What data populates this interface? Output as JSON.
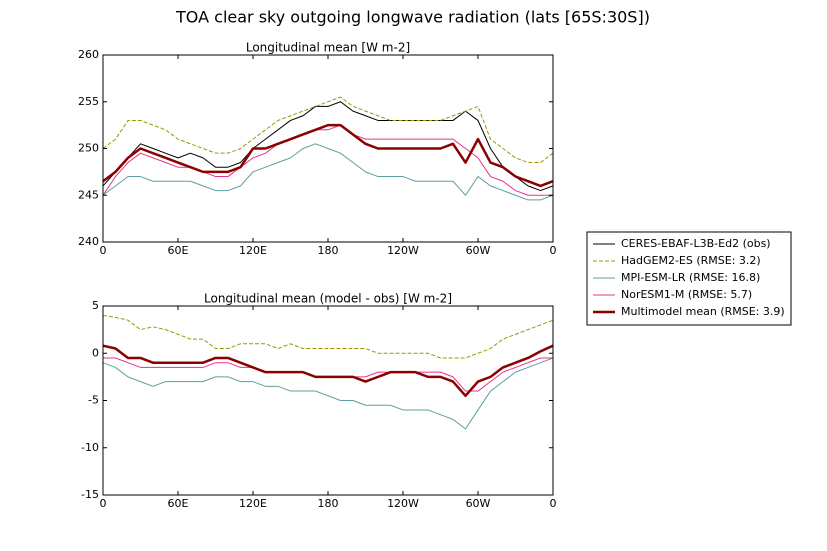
{
  "title": "TOA clear sky outgoing longwave radiation (lats [65S:30S])",
  "chart_data": [
    {
      "type": "line",
      "title": "Longitudinal mean [W m-2]",
      "x": [
        0,
        10,
        20,
        30,
        40,
        50,
        60,
        70,
        80,
        90,
        100,
        110,
        120,
        130,
        140,
        150,
        160,
        170,
        180,
        190,
        200,
        210,
        220,
        230,
        240,
        250,
        260,
        270,
        280,
        290,
        300,
        310,
        320,
        330,
        340,
        350,
        360
      ],
      "xlim": [
        0,
        360
      ],
      "xticks": [
        0,
        {
          "value": 60,
          "label": "60E"
        },
        {
          "value": 120,
          "label": "120E"
        },
        180,
        {
          "value": 240,
          "label": "120W"
        },
        {
          "value": 300,
          "label": "60W"
        },
        {
          "value": 360,
          "label": "0"
        }
      ],
      "ylim": [
        240,
        260
      ],
      "yticks": [
        240,
        245,
        250,
        255,
        260
      ],
      "legend": "outside-right",
      "series": [
        {
          "name": "CERES-EBAF-L3B-Ed2 (obs)",
          "color": "#000000",
          "linewidth": 1,
          "values": [
            246,
            247.5,
            249,
            250.5,
            250,
            249.5,
            249,
            249.5,
            249,
            248,
            248,
            248.5,
            250,
            251,
            252,
            253,
            253.5,
            254.5,
            254.5,
            255,
            254,
            253.5,
            253,
            253,
            253,
            253,
            253,
            253,
            253,
            254,
            253,
            250,
            248,
            247,
            246,
            245.5,
            246
          ]
        },
        {
          "name": "HadGEM2-ES (RMSE: 3.2)",
          "color": "#999900",
          "linestyle": "dashed",
          "linewidth": 1,
          "values": [
            250,
            251,
            253,
            253,
            252.5,
            252,
            251,
            250.5,
            250,
            249.5,
            249.5,
            250,
            251,
            252,
            253,
            253.5,
            254,
            254.5,
            255,
            255.5,
            254.5,
            254,
            253.5,
            253,
            253,
            253,
            253,
            253,
            253.5,
            254,
            254.5,
            251,
            250,
            249,
            248.5,
            248.5,
            249.5
          ]
        },
        {
          "name": "MPI-ESM-LR (RMSE: 16.8)",
          "color": "#5f9ea0",
          "linewidth": 1,
          "values": [
            245,
            246,
            247,
            247,
            246.5,
            246.5,
            246.5,
            246.5,
            246,
            245.5,
            245.5,
            246,
            247.5,
            248,
            248.5,
            249,
            250,
            250.5,
            250,
            249.5,
            248.5,
            247.5,
            247,
            247,
            247,
            246.5,
            246.5,
            246.5,
            246.5,
            245,
            247,
            246,
            245.5,
            245,
            244.5,
            244.5,
            245
          ]
        },
        {
          "name": "NorESM1-M (RMSE: 5.7)",
          "color": "#e8338b",
          "linewidth": 1,
          "values": [
            245,
            247,
            248.5,
            249.5,
            249,
            248.5,
            248,
            248,
            247.5,
            247,
            247,
            248,
            249,
            249.5,
            250.5,
            251,
            251.5,
            252,
            252,
            252.5,
            251.5,
            251,
            251,
            251,
            251,
            251,
            251,
            251,
            251,
            250,
            249,
            247,
            246.5,
            245.5,
            245,
            245,
            245
          ]
        },
        {
          "name": "Multimodel mean (RMSE: 3.9)",
          "color": "#8b0000",
          "linewidth": 2.5,
          "values": [
            246.5,
            247.5,
            249,
            250,
            249.5,
            249,
            248.5,
            248,
            247.5,
            247.5,
            247.5,
            248,
            250,
            250,
            250.5,
            251,
            251.5,
            252,
            252.5,
            252.5,
            251.5,
            250.5,
            250,
            250,
            250,
            250,
            250,
            250,
            250.5,
            248.5,
            251,
            248.5,
            248,
            247,
            246.5,
            246,
            246.5
          ]
        }
      ]
    },
    {
      "type": "line",
      "title": "Longitudinal mean (model - obs) [W m-2]",
      "x": [
        0,
        10,
        20,
        30,
        40,
        50,
        60,
        70,
        80,
        90,
        100,
        110,
        120,
        130,
        140,
        150,
        160,
        170,
        180,
        190,
        200,
        210,
        220,
        230,
        240,
        250,
        260,
        270,
        280,
        290,
        300,
        310,
        320,
        330,
        340,
        350,
        360
      ],
      "xlim": [
        0,
        360
      ],
      "xticks": [
        0,
        {
          "value": 60,
          "label": "60E"
        },
        {
          "value": 120,
          "label": "120E"
        },
        180,
        {
          "value": 240,
          "label": "120W"
        },
        {
          "value": 300,
          "label": "60W"
        },
        {
          "value": 360,
          "label": "0"
        }
      ],
      "ylim": [
        -15,
        5
      ],
      "yticks": [
        -15,
        -10,
        -5,
        0,
        5
      ],
      "series": [
        {
          "color": "#999900",
          "linestyle": "dashed",
          "linewidth": 1,
          "values": [
            4,
            3.8,
            3.5,
            2.5,
            2.8,
            2.5,
            2,
            1.5,
            1.5,
            0.5,
            0.5,
            1,
            1,
            1,
            0.5,
            1,
            0.5,
            0.5,
            0.5,
            0.5,
            0.5,
            0.5,
            0,
            0,
            0,
            0,
            0,
            -0.5,
            -0.5,
            -0.5,
            0,
            0.5,
            1.5,
            2,
            2.5,
            3,
            3.5
          ]
        },
        {
          "color": "#5f9ea0",
          "linewidth": 1,
          "values": [
            -1,
            -1.5,
            -2.5,
            -3,
            -3.5,
            -3,
            -3,
            -3,
            -3,
            -2.5,
            -2.5,
            -3,
            -3,
            -3.5,
            -3.5,
            -4,
            -4,
            -4,
            -4.5,
            -5,
            -5,
            -5.5,
            -5.5,
            -5.5,
            -6,
            -6,
            -6,
            -6.5,
            -7,
            -8,
            -6,
            -4,
            -3,
            -2,
            -1.5,
            -1,
            -0.5
          ]
        },
        {
          "color": "#e8338b",
          "linewidth": 1,
          "values": [
            -0.5,
            -0.5,
            -1,
            -1.5,
            -1.5,
            -1.5,
            -1.5,
            -1.5,
            -1.5,
            -1,
            -1,
            -1.5,
            -1.5,
            -2,
            -2,
            -2,
            -2,
            -2.5,
            -2.5,
            -2.5,
            -2.5,
            -2.5,
            -2,
            -2,
            -2,
            -2,
            -2,
            -2,
            -2.5,
            -4,
            -4,
            -3,
            -2,
            -1.5,
            -1,
            -0.5,
            -0.5
          ]
        },
        {
          "color": "#8b0000",
          "linewidth": 2.5,
          "values": [
            0.8,
            0.5,
            -0.5,
            -0.5,
            -1,
            -1,
            -1,
            -1,
            -1,
            -0.5,
            -0.5,
            -1,
            -1.5,
            -2,
            -2,
            -2,
            -2,
            -2.5,
            -2.5,
            -2.5,
            -2.5,
            -3,
            -2.5,
            -2,
            -2,
            -2,
            -2.5,
            -2.5,
            -3,
            -4.5,
            -3,
            -2.5,
            -1.5,
            -1,
            -0.5,
            0.2,
            0.8
          ]
        }
      ]
    }
  ]
}
